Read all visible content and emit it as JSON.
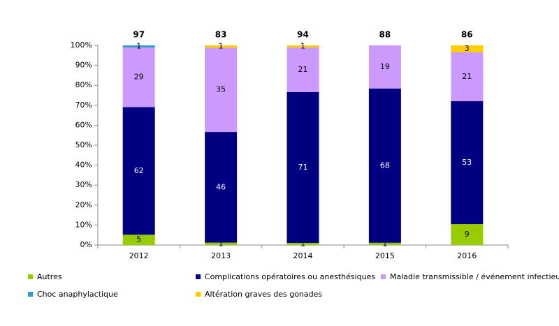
{
  "chart_data": {
    "type": "bar",
    "stacking": "percent",
    "categories": [
      "2012",
      "2013",
      "2014",
      "2015",
      "2016"
    ],
    "totals": [
      97,
      83,
      94,
      88,
      86
    ],
    "series": [
      {
        "name": "Autres",
        "color": "#99cc00",
        "values": [
          5,
          1,
          1,
          1,
          9
        ]
      },
      {
        "name": "Complications opératoires ou anesthésiques",
        "color": "#000080",
        "values": [
          62,
          46,
          71,
          68,
          53
        ]
      },
      {
        "name": "Maladie transmissible / événement infectieux",
        "color": "#cc99ff",
        "values": [
          29,
          35,
          21,
          19,
          21
        ]
      },
      {
        "name": "Choc anaphylactique",
        "color": "#3399cc",
        "values": [
          1,
          null,
          null,
          null,
          null
        ]
      },
      {
        "name": "Altération graves des gonades",
        "color": "#ffcc00",
        "values": [
          null,
          1,
          1,
          null,
          3
        ]
      }
    ],
    "ylim": [
      0,
      100
    ],
    "yticks": [
      {
        "value": 0,
        "label": "0%"
      },
      {
        "value": 10,
        "label": "10%"
      },
      {
        "value": 20,
        "label": "20%"
      },
      {
        "value": 30,
        "label": "30%"
      },
      {
        "value": 40,
        "label": "40%"
      },
      {
        "value": 50,
        "label": "50%"
      },
      {
        "value": 60,
        "label": "60%"
      },
      {
        "value": 70,
        "label": "70%"
      },
      {
        "value": 80,
        "label": "80%"
      },
      {
        "value": 90,
        "label": "90%"
      },
      {
        "value": 100,
        "label": "100%"
      }
    ],
    "grid": false
  }
}
